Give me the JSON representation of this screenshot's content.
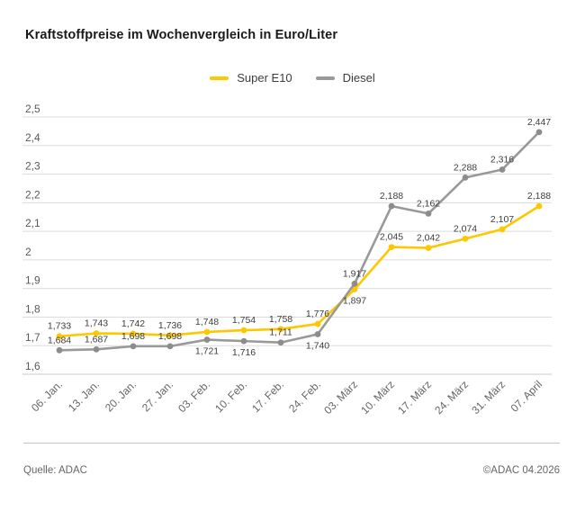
{
  "title": "Kraftstoffpreise im Wochenvergleich in Euro/Liter",
  "legend": [
    {
      "label": "Super E10",
      "color": "#FFC700"
    },
    {
      "label": "Diesel",
      "color": "#999999"
    }
  ],
  "footer": {
    "source": "Quelle: ADAC",
    "copyright": "©ADAC 04.2026"
  },
  "chart_data": {
    "type": "line",
    "title": "Kraftstoffpreise im Wochenvergleich in Euro/Liter",
    "categories": [
      "06. Jan.",
      "13. Jan.",
      "20. Jan.",
      "27. Jan.",
      "03. Feb.",
      "10. Feb.",
      "17. Feb.",
      "24. Feb.",
      "03. März",
      "10. März",
      "17. März",
      "24. März",
      "31. März",
      "07. April"
    ],
    "series": [
      {
        "name": "Super E10",
        "color": "#FFC700",
        "marker_color": "#FFC700",
        "values": [
          1.733,
          1.743,
          1.742,
          1.736,
          1.748,
          1.754,
          1.758,
          1.776,
          1.897,
          2.045,
          2.042,
          2.074,
          2.107,
          2.188
        ],
        "labels": [
          "1,733",
          "1,743",
          "1,742",
          "1,736",
          "1,748",
          "1,754",
          "1,758",
          "1,776",
          "1,897",
          "2,045",
          "2,042",
          "2,074",
          "2,107",
          "2,188"
        ],
        "label_positions": [
          "above",
          "above",
          "above",
          "above",
          "above",
          "above",
          "above",
          "above",
          "below",
          "above",
          "above",
          "above",
          "above",
          "above"
        ]
      },
      {
        "name": "Diesel",
        "color": "#999999",
        "marker_color": "#8c8c8c",
        "values": [
          1.684,
          1.687,
          1.698,
          1.698,
          1.721,
          1.716,
          1.711,
          1.74,
          1.917,
          2.188,
          2.162,
          2.288,
          2.316,
          2.447
        ],
        "labels": [
          "1,684",
          "1,687",
          "1,698",
          "1,698",
          "1,721",
          "1,716",
          "1,711",
          "1,740",
          "1,917",
          "2,188",
          "2,162",
          "2,288",
          "2,316",
          "2,447"
        ],
        "label_positions": [
          "above",
          "above",
          "above",
          "above",
          "below",
          "below",
          "above",
          "below",
          "above",
          "above",
          "above",
          "above",
          "above",
          "above"
        ]
      }
    ],
    "xlabel": "",
    "ylabel": "",
    "ylim": [
      1.6,
      2.5
    ],
    "ytick_step": 0.1,
    "ytick_labels": [
      "1,6",
      "1,7",
      "1,8",
      "1,9",
      "2",
      "2,1",
      "2,2",
      "2,3",
      "2,4",
      "2,5"
    ],
    "grid": true,
    "legend_position": "top"
  }
}
